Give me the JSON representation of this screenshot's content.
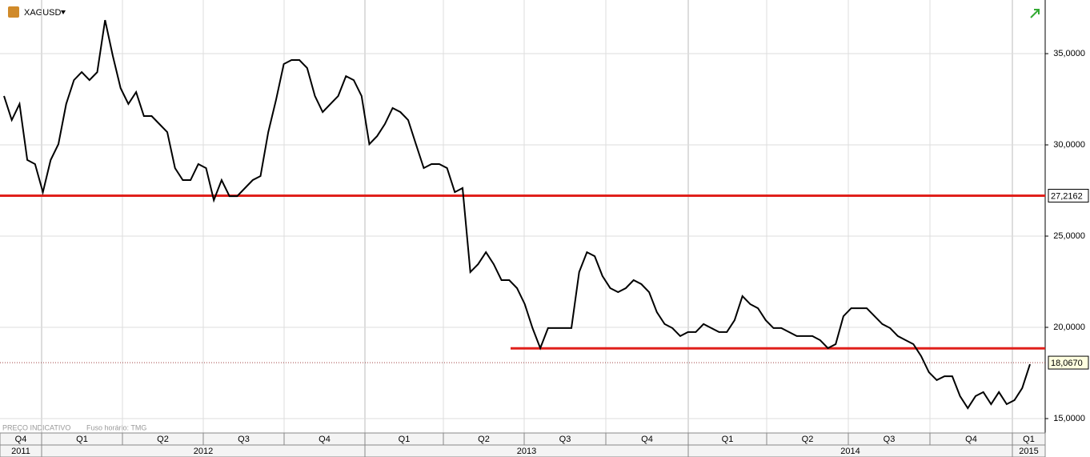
{
  "chart_data": {
    "type": "line",
    "title": "XAGUSD",
    "notes": [
      "PREÇO INDICATIVO",
      "Fuso horário: TMG"
    ],
    "series": [
      {
        "name": "XAGUSD",
        "color": "#000000",
        "values": [
          32.68,
          31.36,
          32.24,
          29.17,
          28.95,
          27.41,
          29.17,
          30.04,
          32.24,
          33.55,
          33.99,
          33.55,
          33.99,
          36.84,
          34.87,
          33.11,
          32.24,
          32.89,
          31.58,
          31.58,
          31.14,
          30.7,
          28.73,
          28.07,
          28.07,
          28.95,
          28.73,
          26.97,
          28.07,
          27.19,
          27.19,
          27.63,
          28.07,
          28.29,
          30.7,
          32.46,
          34.43,
          34.65,
          34.65,
          34.21,
          32.68,
          31.8,
          32.24,
          32.68,
          33.77,
          33.55,
          32.68,
          30.04,
          30.48,
          31.14,
          32.02,
          31.8,
          31.36,
          30.04,
          28.73,
          28.95,
          28.95,
          28.73,
          27.41,
          27.63,
          23.03,
          23.46,
          24.12,
          23.46,
          22.59,
          22.59,
          22.15,
          21.27,
          19.96,
          18.86,
          19.96,
          19.96,
          19.96,
          19.96,
          23.03,
          24.12,
          23.9,
          22.81,
          22.15,
          21.93,
          22.15,
          22.59,
          22.37,
          21.93,
          20.83,
          20.18,
          19.96,
          19.52,
          19.74,
          19.74,
          20.18,
          19.96,
          19.74,
          19.74,
          20.39,
          21.71,
          21.27,
          21.05,
          20.39,
          19.96,
          19.96,
          19.74,
          19.52,
          19.52,
          19.52,
          19.3,
          18.86,
          19.08,
          20.61,
          21.05,
          21.05,
          21.05,
          20.61,
          20.18,
          19.96,
          19.52,
          19.3,
          19.08,
          18.42,
          17.54,
          17.11,
          17.32,
          17.32,
          16.23,
          15.57,
          16.23,
          16.45,
          15.79,
          16.45,
          15.79,
          16.01,
          16.67,
          17.98
        ]
      }
    ],
    "ylim": [
      14.21,
      37.94
    ],
    "yticks": [
      {
        "value": 15,
        "label": "15,0000"
      },
      {
        "value": 20,
        "label": "20,0000"
      },
      {
        "value": 25,
        "label": "25,0000"
      },
      {
        "value": 30,
        "label": "30,0000"
      },
      {
        "value": 35,
        "label": "35,0000"
      }
    ],
    "grid": true,
    "hlines": [
      {
        "value": 27.2162,
        "label": "27,2162",
        "color": "#e0201b"
      },
      {
        "value": 18.85,
        "color": "#e0201b"
      }
    ],
    "last_price": {
      "value": 18.067,
      "label": "18,0670",
      "color": "#a04040"
    },
    "quarters": [
      "Q4",
      "Q1",
      "Q2",
      "Q3",
      "Q4",
      "Q1",
      "Q2",
      "Q3",
      "Q4",
      "Q1",
      "Q2",
      "Q3",
      "Q4",
      "Q1"
    ],
    "years": [
      "2011",
      "2012",
      "2013",
      "2014",
      "2015"
    ]
  }
}
